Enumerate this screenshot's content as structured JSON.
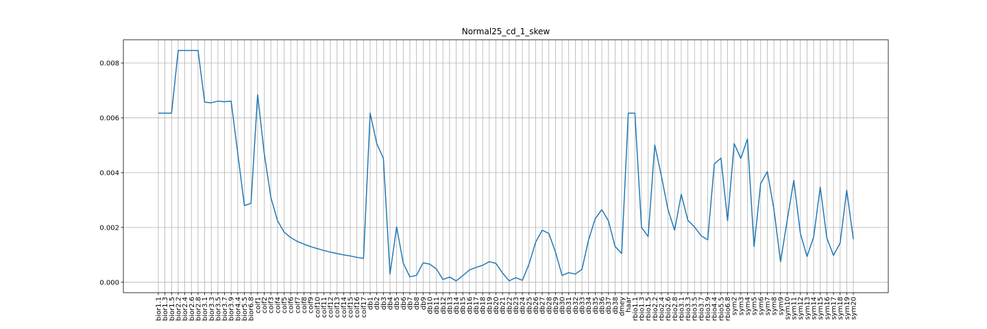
{
  "chart_data": {
    "type": "line",
    "title": "Normal25_cd_1_skew",
    "xlabel": "",
    "ylabel": "",
    "ylim": [
      -0.00038,
      0.00885
    ],
    "yticks": [
      "0.000",
      "0.002",
      "0.004",
      "0.006",
      "0.008"
    ],
    "ytick_values": [
      0,
      0.002,
      0.004,
      0.006,
      0.008
    ],
    "grid": true,
    "line_color": "#1f77b4",
    "grid_color": "#b0b0b0",
    "categories": [
      "bior1.1",
      "bior1.3",
      "bior1.5",
      "bior2.2",
      "bior2.4",
      "bior2.6",
      "bior2.8",
      "bior3.1",
      "bior3.3",
      "bior3.5",
      "bior3.7",
      "bior3.9",
      "bior4.4",
      "bior5.5",
      "bior6.8",
      "coif1",
      "coif2",
      "coif3",
      "coif4",
      "coif5",
      "coif6",
      "coif7",
      "coif8",
      "coif9",
      "coif10",
      "coif11",
      "coif12",
      "coif13",
      "coif14",
      "coif15",
      "coif16",
      "coif17",
      "db1",
      "db2",
      "db3",
      "db4",
      "db5",
      "db6",
      "db7",
      "db8",
      "db9",
      "db10",
      "db11",
      "db12",
      "db13",
      "db14",
      "db15",
      "db16",
      "db17",
      "db18",
      "db19",
      "db20",
      "db21",
      "db22",
      "db23",
      "db24",
      "db25",
      "db26",
      "db27",
      "db28",
      "db29",
      "db30",
      "db31",
      "db32",
      "db33",
      "db34",
      "db35",
      "db36",
      "db37",
      "db38",
      "dmey",
      "haar",
      "rbio1.1",
      "rbio1.3",
      "rbio1.5",
      "rbio2.2",
      "rbio2.4",
      "rbio2.6",
      "rbio2.8",
      "rbio3.1",
      "rbio3.3",
      "rbio3.5",
      "rbio3.7",
      "rbio3.9",
      "rbio4.4",
      "rbio5.5",
      "rbio6.8",
      "sym2",
      "sym3",
      "sym4",
      "sym5",
      "sym6",
      "sym7",
      "sym8",
      "sym9",
      "sym10",
      "sym11",
      "sym12",
      "sym13",
      "sym14",
      "sym15",
      "sym16",
      "sym17",
      "sym18",
      "sym19",
      "sym20"
    ],
    "values": [
      0.00617,
      0.00617,
      0.00617,
      0.00846,
      0.00846,
      0.00846,
      0.00846,
      0.00657,
      0.00655,
      0.00661,
      0.00659,
      0.00661,
      0.0047,
      0.0028,
      0.00288,
      0.00685,
      0.0047,
      0.0031,
      0.00225,
      0.00183,
      0.00163,
      0.00149,
      0.00139,
      0.0013,
      0.00123,
      0.00116,
      0.0011,
      0.00105,
      0.001,
      0.00096,
      0.00091,
      0.00087,
      0.00617,
      0.00506,
      0.00452,
      0.0003,
      0.00202,
      0.0007,
      0.0002,
      0.00025,
      0.00071,
      0.00066,
      0.00049,
      0.0001,
      0.00019,
      5e-05,
      0.00024,
      0.00045,
      0.00054,
      0.00062,
      0.00075,
      0.00069,
      0.00034,
      5e-05,
      0.00017,
      7e-05,
      0.00066,
      0.00146,
      0.0019,
      0.00178,
      0.0011,
      0.00025,
      0.00035,
      0.0003,
      0.00047,
      0.00155,
      0.00232,
      0.00265,
      0.00224,
      0.00131,
      0.00105,
      0.00617,
      0.00617,
      0.002,
      0.00167,
      0.00501,
      0.00388,
      0.00265,
      0.0019,
      0.00321,
      0.00226,
      0.00202,
      0.0017,
      0.00155,
      0.00432,
      0.00453,
      0.00225,
      0.00506,
      0.00452,
      0.00523,
      0.0013,
      0.0036,
      0.00404,
      0.00267,
      0.00075,
      0.00225,
      0.00372,
      0.00178,
      0.00094,
      0.00165,
      0.00347,
      0.00161,
      0.00098,
      0.00143,
      0.00336,
      0.00157
    ]
  }
}
